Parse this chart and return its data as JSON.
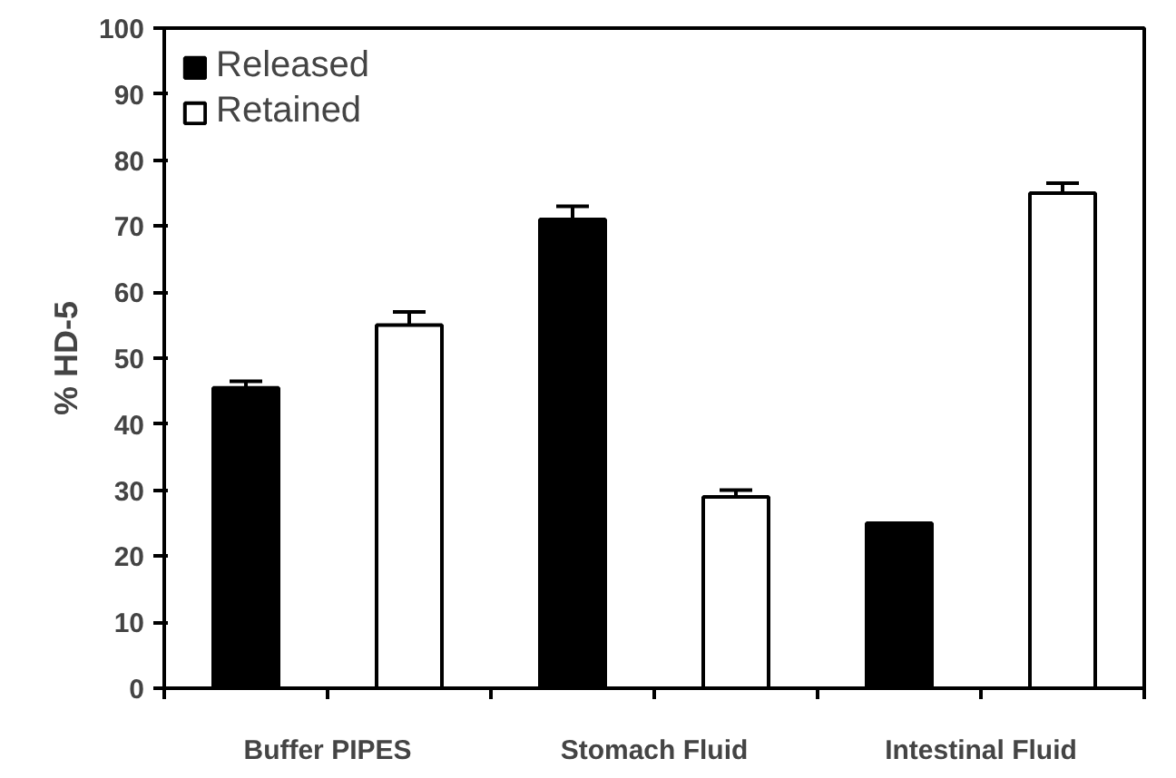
{
  "chart_data": {
    "type": "bar",
    "ylabel": "% HD-5",
    "categories": [
      "Buffer PIPES",
      "Stomach Fluid",
      "Intestinal Fluid"
    ],
    "series": [
      {
        "name": "Released",
        "color": "#000000",
        "values": [
          45.5,
          71,
          25
        ],
        "errors": [
          1,
          2,
          null
        ]
      },
      {
        "name": "Retained",
        "color": "#ffffff",
        "values": [
          55,
          29,
          75
        ],
        "errors": [
          2,
          1,
          1.5
        ]
      }
    ],
    "ylim": [
      0,
      100
    ],
    "yticks": [
      0,
      10,
      20,
      30,
      40,
      50,
      60,
      70,
      80,
      90,
      100
    ],
    "legend": "top left",
    "grid": false
  }
}
